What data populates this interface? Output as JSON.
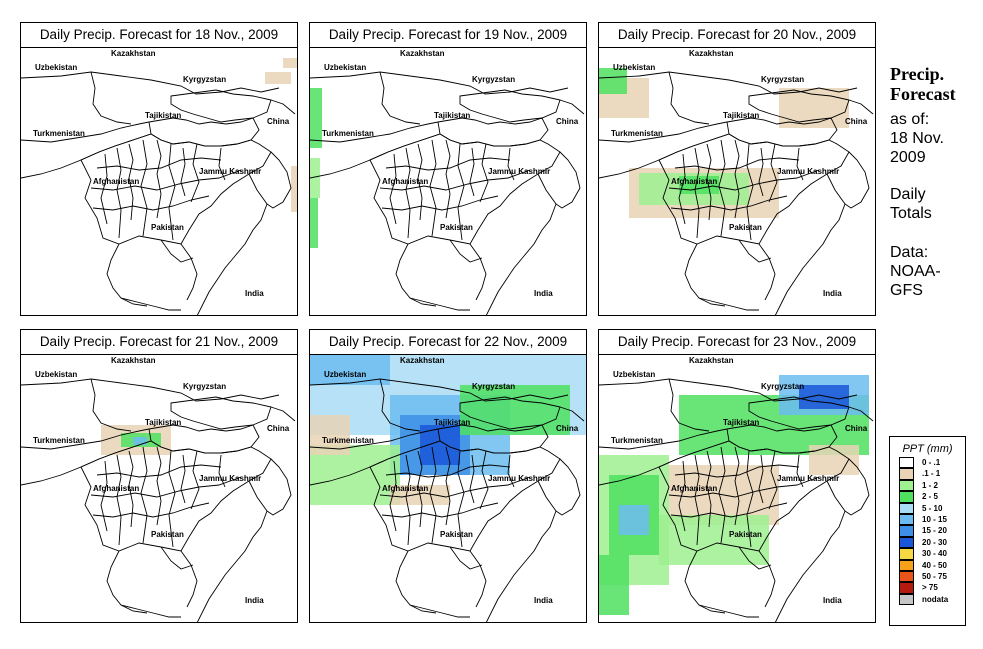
{
  "panels": [
    {
      "title": "Daily Precip. Forecast for  18 Nov., 2009"
    },
    {
      "title": "Daily Precip. Forecast for  19 Nov., 2009"
    },
    {
      "title": "Daily Precip. Forecast for  20 Nov., 2009"
    },
    {
      "title": "Daily Precip. Forecast for  21 Nov., 2009"
    },
    {
      "title": "Daily Precip. Forecast for  22 Nov., 2009"
    },
    {
      "title": "Daily Precip. Forecast for  23 Nov., 2009"
    }
  ],
  "map_labels": {
    "kazakhstan": "Kazakhstan",
    "uzbekistan": "Uzbekistan",
    "kyrgyzstan": "Kyrgyzstan",
    "tajikistan": "Tajikistan",
    "china": "China",
    "turkmenistan": "Turkmenistan",
    "afghanistan": "Afghanistan",
    "jammu_kashmir": "Jammu Kashmir",
    "pakistan": "Pakistan",
    "india": "India"
  },
  "sidebar": {
    "title_line1": "Precip.",
    "title_line2": "Forecast",
    "asof_line1": "as of:",
    "asof_line2": "18 Nov.",
    "asof_line3": "2009",
    "totals_line1": "Daily",
    "totals_line2": "Totals",
    "data_line1": "Data:",
    "data_line2": "NOAA-",
    "data_line3": "GFS"
  },
  "legend": {
    "title": "PPT (mm)",
    "items": [
      {
        "label": "0 - .1",
        "color": "#ffffff"
      },
      {
        "label": ".1 - 1",
        "color": "#e8d3b5"
      },
      {
        "label": "1 - 2",
        "color": "#9ef090"
      },
      {
        "label": "2 - 5",
        "color": "#4fe060"
      },
      {
        "label": "5 - 10",
        "color": "#a9dcf5"
      },
      {
        "label": "10 - 15",
        "color": "#6cbcf0"
      },
      {
        "label": "15 - 20",
        "color": "#3e8fe6"
      },
      {
        "label": "20 - 30",
        "color": "#1a56d8"
      },
      {
        "label": "30 - 40",
        "color": "#f6d842"
      },
      {
        "label": "40 - 50",
        "color": "#f4a21a"
      },
      {
        "label": "50 - 75",
        "color": "#e8541a"
      },
      {
        "label": "> 75",
        "color": "#b41a10"
      },
      {
        "label": "nodata",
        "color": "#c6c6c6"
      }
    ]
  }
}
